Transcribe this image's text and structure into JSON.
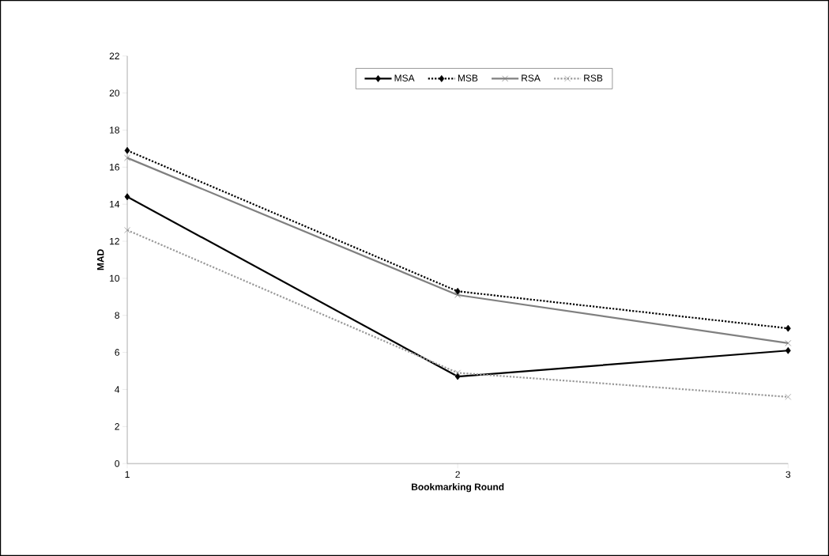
{
  "chart_data": {
    "type": "line",
    "xlabel": "Bookmarking Round",
    "ylabel": "MAD",
    "x": [
      1,
      2,
      3
    ],
    "xlim": [
      1,
      3
    ],
    "xticks": [
      1,
      2,
      3
    ],
    "ylim": [
      0,
      22
    ],
    "yticks": [
      0,
      2,
      4,
      6,
      8,
      10,
      12,
      14,
      16,
      18,
      20,
      22
    ],
    "grid": false,
    "legend": "top",
    "series": [
      {
        "name": "MSA",
        "color": "#000000",
        "values": [
          14.4,
          4.7,
          6.1
        ],
        "marker": "diamond",
        "line_style": "solid"
      },
      {
        "name": "MSB",
        "color": "#000000",
        "values": [
          16.9,
          9.3,
          7.3
        ],
        "marker": "diamond",
        "line_style": "dotted"
      },
      {
        "name": "RSA",
        "color": "#808080",
        "values": [
          16.5,
          9.1,
          6.5
        ],
        "marker": "cross",
        "line_style": "solid"
      },
      {
        "name": "RSB",
        "color": "#9a9a9a",
        "values": [
          12.6,
          4.9,
          3.6
        ],
        "marker": "cross",
        "line_style": "dotted"
      }
    ]
  }
}
